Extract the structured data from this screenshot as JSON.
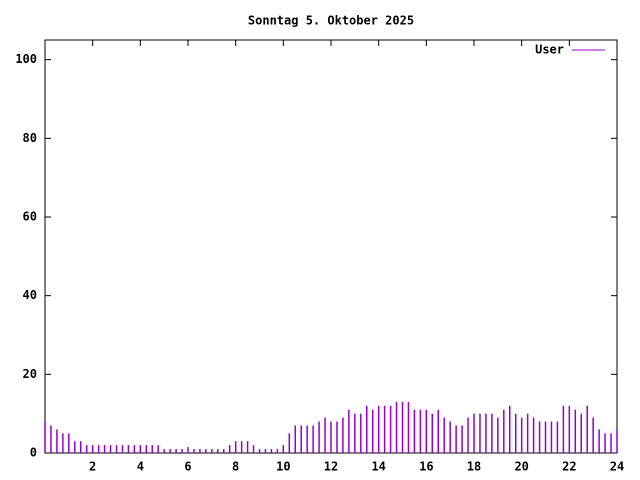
{
  "chart_data": {
    "type": "impulse",
    "title": "Sonntag 5. Oktober 2025",
    "x": [
      0,
      0.25,
      0.5,
      0.75,
      1,
      1.25,
      1.5,
      1.75,
      2,
      2.25,
      2.5,
      2.75,
      3,
      3.25,
      3.5,
      3.75,
      4,
      4.25,
      4.5,
      4.75,
      5,
      5.25,
      5.5,
      5.75,
      6,
      6.25,
      6.5,
      6.75,
      7,
      7.25,
      7.5,
      7.75,
      8,
      8.25,
      8.5,
      8.75,
      9,
      9.25,
      9.5,
      9.75,
      10,
      10.25,
      10.5,
      10.75,
      11,
      11.25,
      11.5,
      11.75,
      12,
      12.25,
      12.5,
      12.75,
      13,
      13.25,
      13.5,
      13.75,
      14,
      14.25,
      14.5,
      14.75,
      15,
      15.25,
      15.5,
      15.75,
      16,
      16.25,
      16.5,
      16.75,
      17,
      17.25,
      17.5,
      17.75,
      18,
      18.25,
      18.5,
      18.75,
      19,
      19.25,
      19.5,
      19.75,
      20,
      20.25,
      20.5,
      20.75,
      21,
      21.25,
      21.5,
      21.75,
      22,
      22.25,
      22.5,
      22.75,
      23,
      23.25,
      23.5,
      23.75,
      24
    ],
    "series": [
      {
        "name": "User",
        "color": "#9400d3",
        "values": [
          8,
          7,
          6,
          5,
          5,
          3,
          3,
          2,
          2,
          2,
          2,
          2,
          2,
          2,
          2,
          2,
          2,
          2,
          2,
          2,
          1,
          1,
          1,
          1,
          1,
          1,
          1,
          1,
          1,
          1,
          1,
          2,
          3,
          3,
          3,
          2,
          1,
          1,
          1,
          1,
          2,
          5,
          7,
          7,
          7,
          7,
          8,
          9,
          8,
          8,
          9,
          11,
          10,
          10,
          12,
          11,
          12,
          12,
          12,
          13,
          13,
          13,
          11,
          11,
          11,
          10,
          11,
          9,
          8,
          7,
          7,
          9,
          10,
          10,
          10,
          10,
          9,
          11,
          12,
          10,
          9,
          10,
          9,
          8,
          8,
          8,
          8,
          12,
          12,
          11,
          10,
          12,
          9,
          6,
          5,
          5,
          6
        ]
      }
    ],
    "xlim": [
      0,
      24
    ],
    "xticks": [
      2,
      4,
      6,
      8,
      10,
      12,
      14,
      16,
      18,
      20,
      22,
      24
    ],
    "ylim": [
      0,
      105
    ],
    "yticks": [
      0,
      20,
      40,
      60,
      80,
      100
    ],
    "legend": "top-right"
  }
}
